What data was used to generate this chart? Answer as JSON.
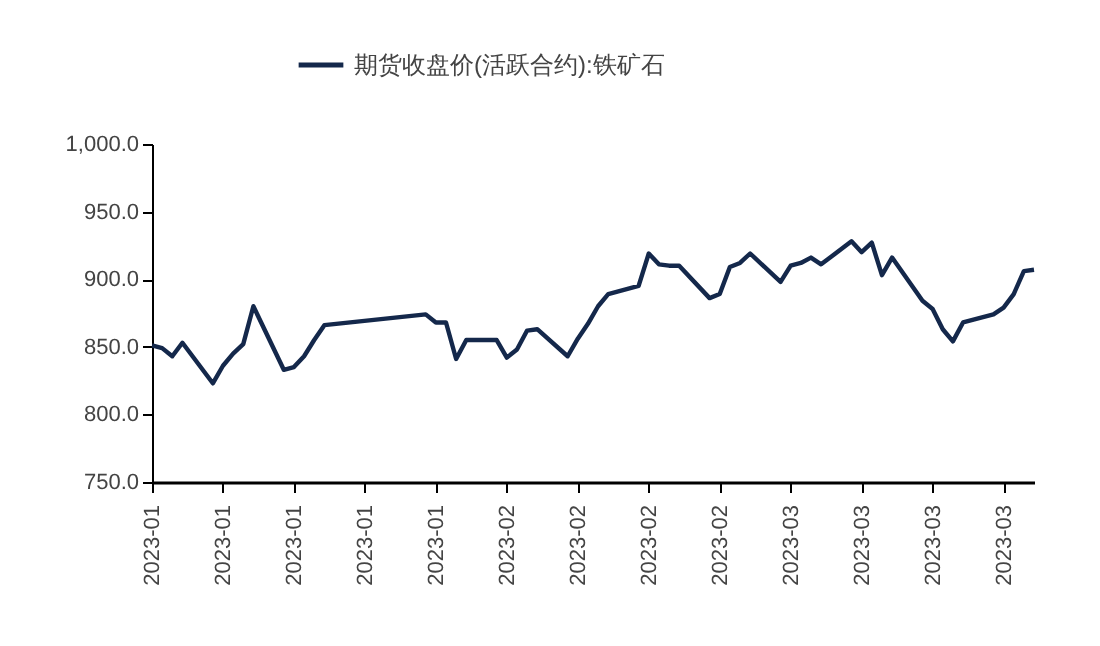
{
  "chart_data": {
    "type": "line",
    "x": [
      "2023-01-03",
      "2023-01-04",
      "2023-01-05",
      "2023-01-06",
      "2023-01-09",
      "2023-01-10",
      "2023-01-11",
      "2023-01-12",
      "2023-01-13",
      "2023-01-16",
      "2023-01-17",
      "2023-01-18",
      "2023-01-19",
      "2023-01-20",
      "2023-01-30",
      "2023-01-31",
      "2023-02-01",
      "2023-02-02",
      "2023-02-03",
      "2023-02-06",
      "2023-02-07",
      "2023-02-08",
      "2023-02-09",
      "2023-02-10",
      "2023-02-13",
      "2023-02-14",
      "2023-02-15",
      "2023-02-16",
      "2023-02-17",
      "2023-02-20",
      "2023-02-21",
      "2023-02-22",
      "2023-02-23",
      "2023-02-24",
      "2023-02-27",
      "2023-02-28",
      "2023-03-01",
      "2023-03-02",
      "2023-03-03",
      "2023-03-06",
      "2023-03-07",
      "2023-03-08",
      "2023-03-09",
      "2023-03-10",
      "2023-03-13",
      "2023-03-14",
      "2023-03-15",
      "2023-03-16",
      "2023-03-17",
      "2023-03-20",
      "2023-03-21",
      "2023-03-22",
      "2023-03-23",
      "2023-03-24",
      "2023-03-27",
      "2023-03-28",
      "2023-03-29",
      "2023-03-30",
      "2023-03-31"
    ],
    "series": [
      {
        "name": "期货收盘价(活跃合约):铁矿石",
        "color": "#14284b",
        "values": [
          851,
          849,
          843,
          853,
          823,
          836,
          845,
          852,
          880,
          833,
          835,
          843,
          855,
          866,
          874,
          868,
          868,
          841,
          855,
          855,
          842,
          848,
          862,
          863,
          843,
          856,
          867,
          880,
          889,
          895,
          919,
          911,
          910,
          910,
          886,
          889,
          909,
          912,
          919,
          898,
          910,
          912,
          916,
          911,
          928,
          920,
          927,
          903,
          916,
          884,
          878,
          863,
          854,
          868,
          874,
          879,
          889,
          906,
          907
        ]
      }
    ],
    "xlim": [
      "2023-01-03",
      "2023-03-31"
    ],
    "xticks": [
      {
        "value": "2023-01-03",
        "label": "2023-01"
      },
      {
        "value": "2023-01-10",
        "label": "2023-01"
      },
      {
        "value": "2023-01-17",
        "label": "2023-01"
      },
      {
        "value": "2023-01-24",
        "label": "2023-01"
      },
      {
        "value": "2023-01-31",
        "label": "2023-01"
      },
      {
        "value": "2023-02-07",
        "label": "2023-02"
      },
      {
        "value": "2023-02-14",
        "label": "2023-02"
      },
      {
        "value": "2023-02-21",
        "label": "2023-02"
      },
      {
        "value": "2023-02-28",
        "label": "2023-02"
      },
      {
        "value": "2023-03-07",
        "label": "2023-03"
      },
      {
        "value": "2023-03-14",
        "label": "2023-03"
      },
      {
        "value": "2023-03-21",
        "label": "2023-03"
      },
      {
        "value": "2023-03-28",
        "label": "2023-03"
      }
    ],
    "ylim": [
      750,
      1000
    ],
    "yticks": [
      {
        "value": 750,
        "label": "750.0"
      },
      {
        "value": 800,
        "label": "800.0"
      },
      {
        "value": 850,
        "label": "850.0"
      },
      {
        "value": 900,
        "label": "900.0"
      },
      {
        "value": 950,
        "label": "950.0"
      },
      {
        "value": 1000,
        "label": "1,000.0"
      }
    ],
    "grid": false,
    "legend": "top",
    "marker": "none",
    "line_style": "solid"
  }
}
